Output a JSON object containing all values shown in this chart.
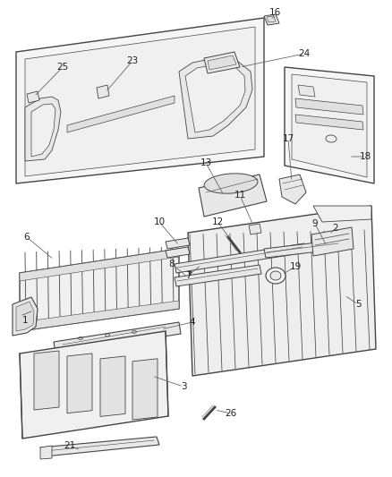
{
  "bg_color": "#ffffff",
  "line_color": "#444444",
  "fill_light": "#f2f2f2",
  "fill_mid": "#e8e8e8",
  "fill_dark": "#d8d8d8",
  "leader_color": "#666666",
  "label_color": "#222222",
  "figw": 4.38,
  "figh": 5.33,
  "dpi": 100
}
